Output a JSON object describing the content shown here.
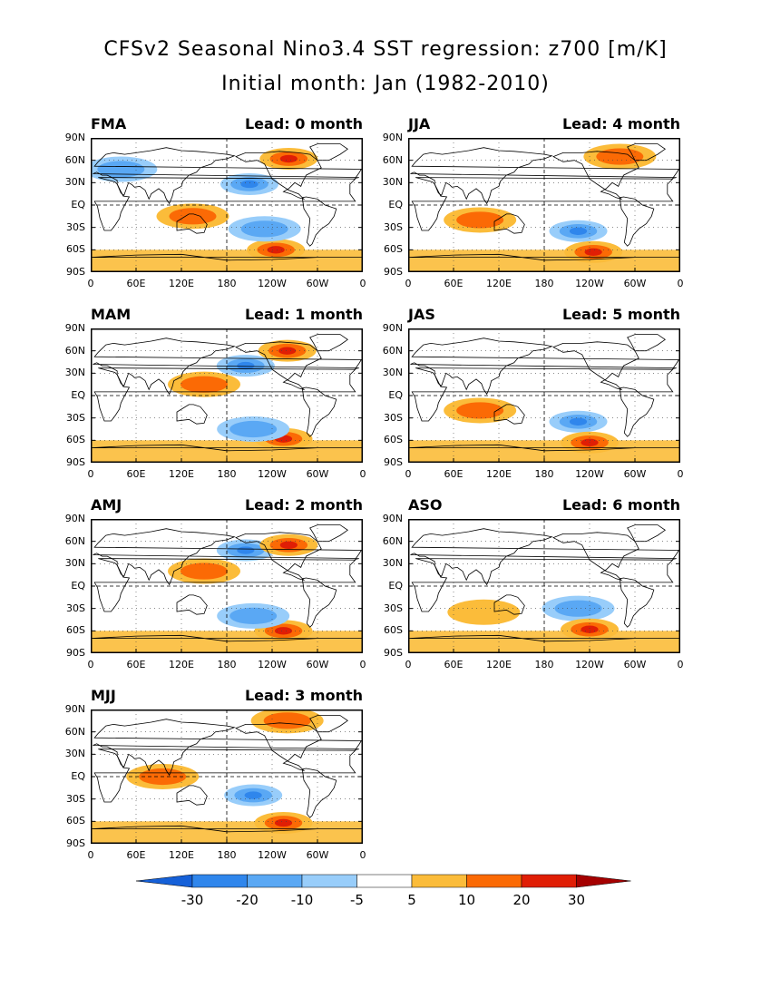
{
  "title_line1": "CFSv2 Seasonal Nino3.4 SST regression: z700 [m/K]",
  "title_line2": "Initial month: Jan (1982-2010)",
  "chart_data": {
    "type": "heatmap",
    "title": "CFSv2 Seasonal Nino3.4 SST regression: z700 [m/K]",
    "subtitle": "Initial month: Jan (1982-2010)",
    "x_ticks": [
      "0",
      "60E",
      "120E",
      "180",
      "120W",
      "60W",
      "0"
    ],
    "y_ticks": [
      "90N",
      "60N",
      "30N",
      "EQ",
      "30S",
      "60S",
      "90S"
    ],
    "lon_range": [
      0,
      360
    ],
    "lat_range": [
      -90,
      90
    ],
    "colorbar": {
      "levels": [
        -30,
        -20,
        -10,
        -5,
        5,
        10,
        20,
        30
      ],
      "labels": [
        "-30",
        "-20",
        "-10",
        "-5",
        "5",
        "10",
        "20",
        "30"
      ],
      "colors": [
        "#1560d8",
        "#2f86ec",
        "#5aa8f4",
        "#98cdfa",
        "#ffffff",
        "#fbbc3a",
        "#fb6a05",
        "#e01e05",
        "#a50000"
      ]
    },
    "panels": [
      {
        "season": "FMA",
        "lead": "Lead: 0 month",
        "features": [
          {
            "lon": 210,
            "lat": 28,
            "value": -20
          },
          {
            "lon": 262,
            "lat": 62,
            "value": 20
          },
          {
            "lon": 245,
            "lat": -60,
            "value": 20
          },
          {
            "lon": 230,
            "lat": -32,
            "value": -10
          },
          {
            "lon": 135,
            "lat": -15,
            "value": 10
          },
          {
            "lon": 40,
            "lat": 48,
            "value": -10
          }
        ]
      },
      {
        "season": "JJA",
        "lead": "Lead: 4 month",
        "features": [
          {
            "lon": 225,
            "lat": -35,
            "value": -20
          },
          {
            "lon": 245,
            "lat": -63,
            "value": 20
          },
          {
            "lon": 95,
            "lat": -20,
            "value": 10
          },
          {
            "lon": 280,
            "lat": 65,
            "value": 10
          }
        ]
      },
      {
        "season": "MAM",
        "lead": "Lead: 1 month",
        "features": [
          {
            "lon": 205,
            "lat": 40,
            "value": -20
          },
          {
            "lon": 260,
            "lat": 60,
            "value": 20
          },
          {
            "lon": 255,
            "lat": -58,
            "value": 20
          },
          {
            "lon": 215,
            "lat": -45,
            "value": -10
          },
          {
            "lon": 150,
            "lat": 15,
            "value": 10
          }
        ]
      },
      {
        "season": "JAS",
        "lead": "Lead: 5 month",
        "features": [
          {
            "lon": 225,
            "lat": -35,
            "value": -20
          },
          {
            "lon": 240,
            "lat": -63,
            "value": 20
          },
          {
            "lon": 95,
            "lat": -20,
            "value": 10
          }
        ]
      },
      {
        "season": "AMJ",
        "lead": "Lead: 2 month",
        "features": [
          {
            "lon": 205,
            "lat": 48,
            "value": -20
          },
          {
            "lon": 262,
            "lat": 55,
            "value": 20
          },
          {
            "lon": 255,
            "lat": -60,
            "value": 20
          },
          {
            "lon": 215,
            "lat": -40,
            "value": -10
          },
          {
            "lon": 150,
            "lat": 20,
            "value": 10
          }
        ]
      },
      {
        "season": "ASO",
        "lead": "Lead: 6 month",
        "features": [
          {
            "lon": 225,
            "lat": -30,
            "value": -10
          },
          {
            "lon": 240,
            "lat": -58,
            "value": 20
          },
          {
            "lon": 100,
            "lat": -35,
            "value": 5
          }
        ]
      },
      {
        "season": "MJJ",
        "lead": "Lead: 3 month",
        "features": [
          {
            "lon": 215,
            "lat": -25,
            "value": -20
          },
          {
            "lon": 255,
            "lat": -62,
            "value": 20
          },
          {
            "lon": 260,
            "lat": 75,
            "value": 10
          },
          {
            "lon": 95,
            "lat": 0,
            "value": 10
          }
        ]
      }
    ]
  }
}
